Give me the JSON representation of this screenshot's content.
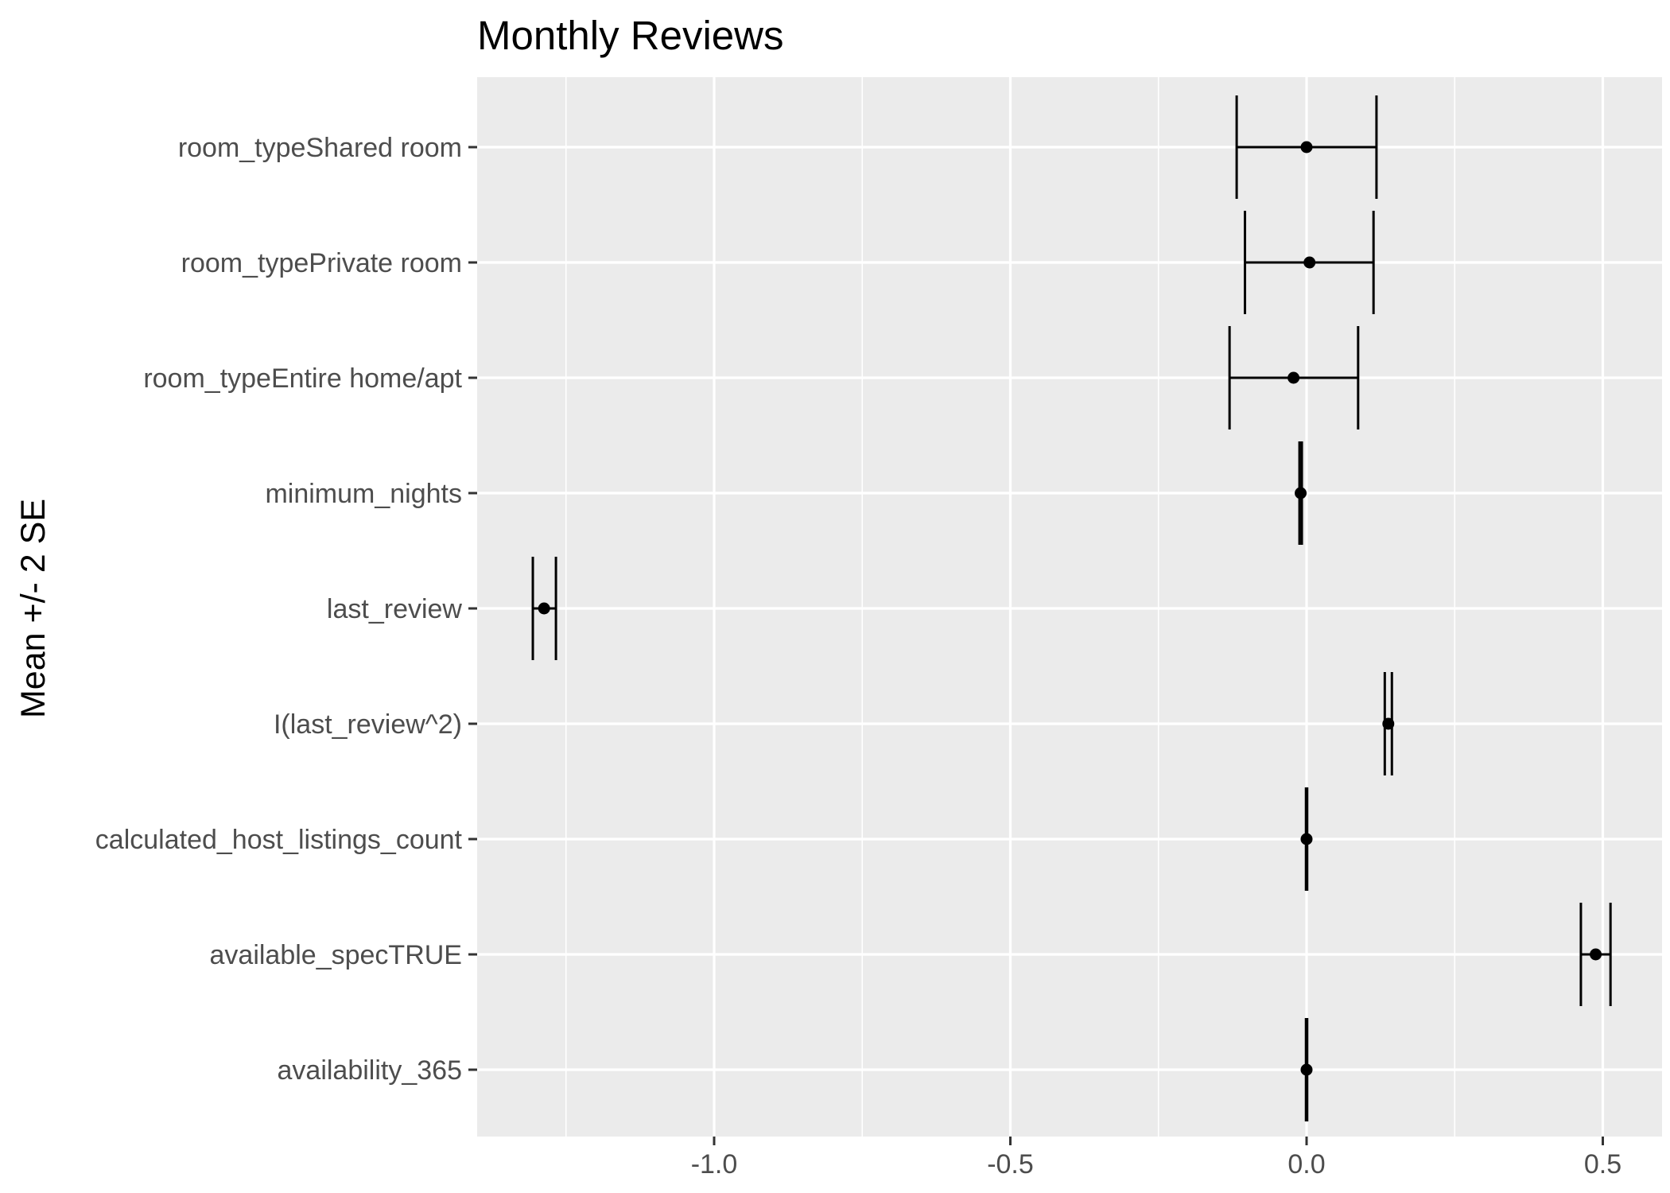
{
  "chart_data": {
    "type": "scatter",
    "title": "Monthly Reviews",
    "xlabel": "",
    "ylabel": "Mean +/- 2 SE",
    "xlim": [
      -1.4,
      0.6
    ],
    "x_ticks": [
      -1.0,
      -0.5,
      0.0,
      0.5
    ],
    "x_tick_labels": [
      "-1.0",
      "-0.5",
      "0.0",
      "0.5"
    ],
    "categories": [
      "room_typeShared room",
      "room_typePrivate room",
      "room_typeEntire home/apt",
      "minimum_nights",
      "last_review",
      "I(last_review^2)",
      "calculated_host_listings_count",
      "available_specTRUE",
      "availability_365"
    ],
    "series": [
      {
        "mean": [
          0.0,
          0.005,
          -0.022,
          -0.01,
          -1.287,
          0.138,
          0.0,
          0.488,
          0.0
        ],
        "lower": [
          -0.118,
          -0.104,
          -0.13,
          -0.012,
          -1.306,
          0.132,
          -0.001,
          0.463,
          -0.001
        ],
        "upper": [
          0.118,
          0.113,
          0.087,
          -0.008,
          -1.267,
          0.144,
          0.001,
          0.513,
          0.001
        ]
      }
    ],
    "grid": true,
    "legend": "none",
    "colors": {
      "panel_background": "#ebebeb",
      "grid_line": "#ffffff",
      "marks": "#000000",
      "tick_text": "#4d4d4d",
      "tick_mark": "#333333"
    }
  }
}
